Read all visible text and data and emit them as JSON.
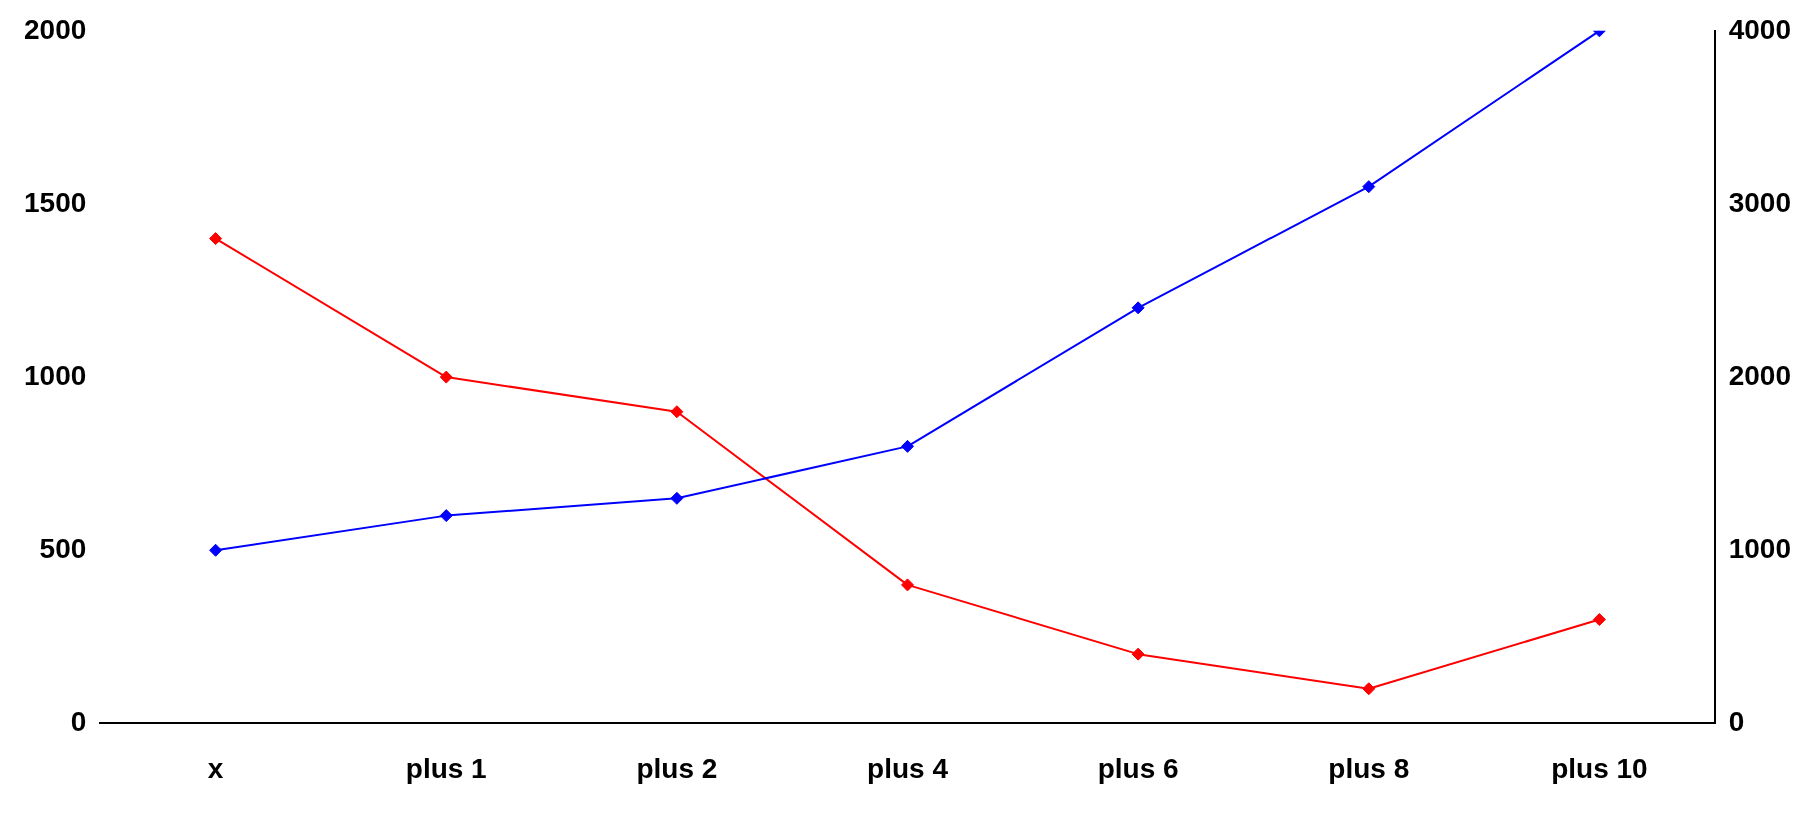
{
  "chart_data": {
    "type": "line",
    "categories": [
      "x",
      "plus 1",
      "plus 2",
      "plus 4",
      "plus 6",
      "plus 8",
      "plus 10"
    ],
    "series": [
      {
        "color": "#0000ff",
        "values": [
          500,
          600,
          650,
          800,
          1200,
          1550,
          2000
        ]
      },
      {
        "color": "#ff0000",
        "axis": "y2",
        "values": [
          2800,
          2000,
          1800,
          800,
          400,
          200,
          600
        ]
      }
    ],
    "ylim": [
      0,
      2000
    ],
    "yticks": [
      0,
      500,
      1000,
      1500,
      2000
    ],
    "y2lim": [
      0,
      4000
    ],
    "y2ticks": [
      0,
      1000,
      2000,
      3000,
      4000
    ],
    "grid": false,
    "legend": false,
    "marker": "diamond",
    "line_style": "solid"
  }
}
